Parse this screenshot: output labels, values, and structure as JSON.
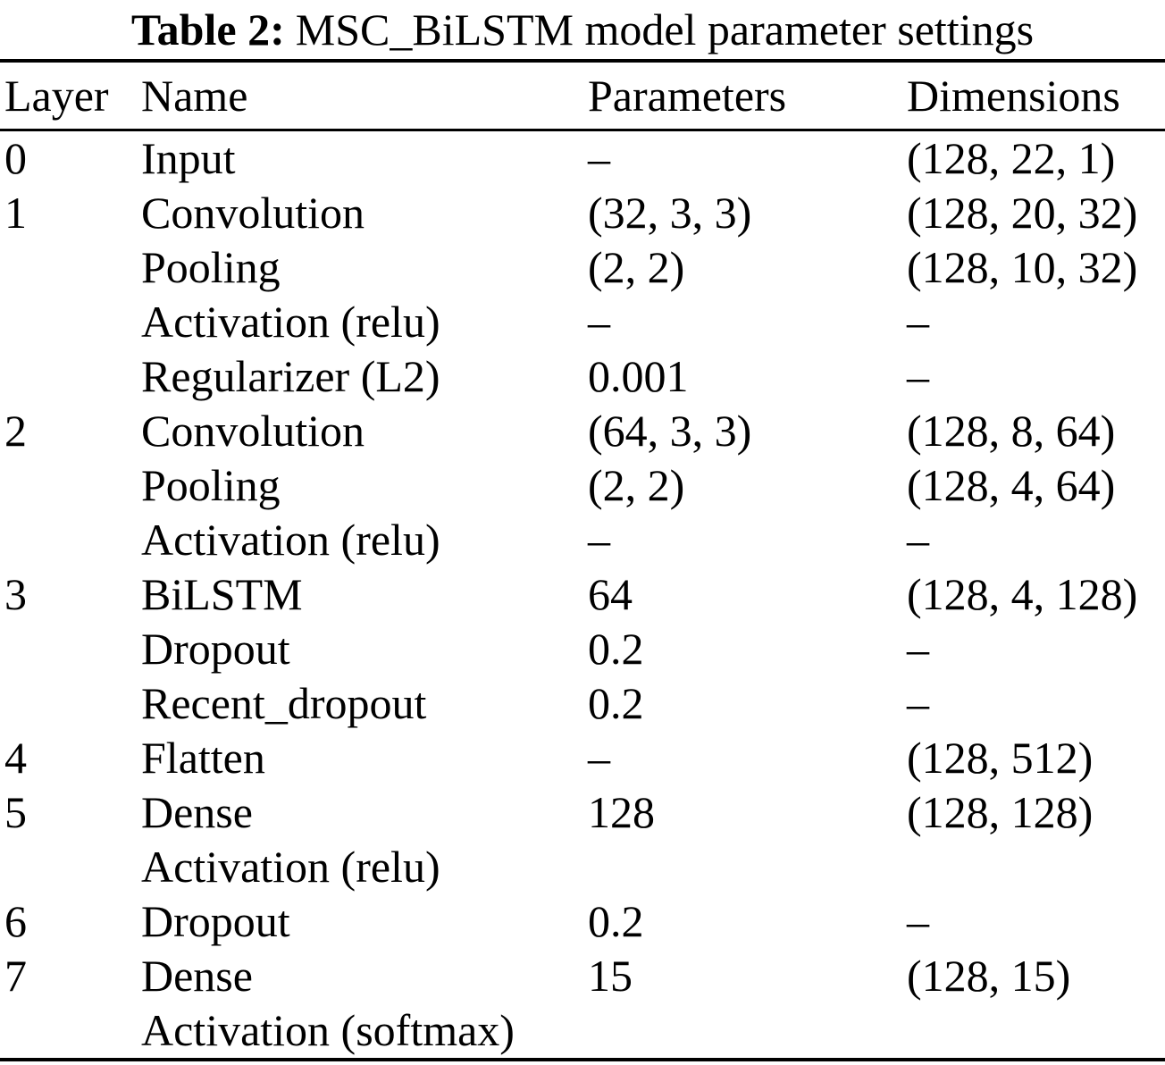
{
  "caption": {
    "label": "Table 2:",
    "text": "MSC_BiLSTM model parameter settings"
  },
  "table": {
    "columns": [
      "Layer",
      "Name",
      "Parameters",
      "Dimensions"
    ],
    "rows": [
      {
        "layer": "0",
        "name": "Input",
        "parameters": "–",
        "dimensions": "(128, 22, 1)"
      },
      {
        "layer": "1",
        "name": "Convolution",
        "parameters": "(32, 3, 3)",
        "dimensions": "(128, 20, 32)"
      },
      {
        "layer": "",
        "name": "Pooling",
        "parameters": "(2, 2)",
        "dimensions": "(128, 10, 32)"
      },
      {
        "layer": "",
        "name": "Activation (relu)",
        "parameters": "–",
        "dimensions": "–"
      },
      {
        "layer": "",
        "name": "Regularizer (L2)",
        "parameters": "0.001",
        "dimensions": "–"
      },
      {
        "layer": "2",
        "name": "Convolution",
        "parameters": "(64, 3, 3)",
        "dimensions": "(128, 8, 64)"
      },
      {
        "layer": "",
        "name": "Pooling",
        "parameters": "(2, 2)",
        "dimensions": "(128, 4, 64)"
      },
      {
        "layer": "",
        "name": "Activation (relu)",
        "parameters": "–",
        "dimensions": "–"
      },
      {
        "layer": "3",
        "name": "BiLSTM",
        "parameters": "64",
        "dimensions": "(128, 4, 128)"
      },
      {
        "layer": "",
        "name": "Dropout",
        "parameters": "0.2",
        "dimensions": "–"
      },
      {
        "layer": "",
        "name": "Recent_dropout",
        "parameters": "0.2",
        "dimensions": "–"
      },
      {
        "layer": "4",
        "name": "Flatten",
        "parameters": "–",
        "dimensions": "(128, 512)"
      },
      {
        "layer": "5",
        "name": "Dense",
        "parameters": "128",
        "dimensions": "(128, 128)"
      },
      {
        "layer": "",
        "name": "Activation (relu)",
        "parameters": "",
        "dimensions": ""
      },
      {
        "layer": "6",
        "name": "Dropout",
        "parameters": "0.2",
        "dimensions": "–"
      },
      {
        "layer": "7",
        "name": "Dense",
        "parameters": "15",
        "dimensions": "(128, 15)"
      },
      {
        "layer": "",
        "name": "Activation (softmax)",
        "parameters": "",
        "dimensions": ""
      }
    ]
  },
  "colors": {
    "text": "#000000",
    "background": "#ffffff",
    "rule": "#000000"
  }
}
